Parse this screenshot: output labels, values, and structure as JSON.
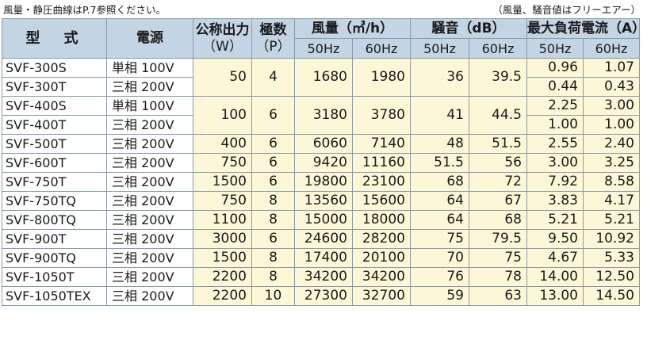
{
  "note_left": "風量・静圧曲線はP.7参照ください。",
  "note_right": "（風量、騒音値はフリーエアー）",
  "headers": {
    "model": "型　式",
    "power": "電源",
    "output": "公称出力",
    "output_unit": "（W）",
    "poles": "極数",
    "poles_unit": "（P）",
    "airflow": "風量（㎥/h）",
    "noise": "騒音（dB）",
    "current": "最大負荷電流（A）",
    "hz50": "50Hz",
    "hz60": "60Hz"
  },
  "rows": [
    {
      "model": "SVF-300S",
      "power": "単相 100V",
      "output": "50",
      "poles": "4",
      "af50": "1680",
      "af60": "1980",
      "n50": "36",
      "n60": "39.5",
      "c50": "0.96",
      "c60": "1.07"
    },
    {
      "model": "SVF-300T",
      "power": "三相 200V",
      "c50": "0.44",
      "c60": "0.43"
    },
    {
      "model": "SVF-400S",
      "power": "単相 100V",
      "output": "100",
      "poles": "6",
      "af50": "3180",
      "af60": "3780",
      "n50": "41",
      "n60": "44.5",
      "c50": "2.25",
      "c60": "3.00"
    },
    {
      "model": "SVF-400T",
      "power": "三相 200V",
      "c50": "1.00",
      "c60": "1.00"
    },
    {
      "model": "SVF-500T",
      "power": "三相 200V",
      "output": "400",
      "poles": "6",
      "af50": "6060",
      "af60": "7140",
      "n50": "48",
      "n60": "51.5",
      "c50": "2.55",
      "c60": "2.40"
    },
    {
      "model": "SVF-600T",
      "power": "三相 200V",
      "output": "750",
      "poles": "6",
      "af50": "9420",
      "af60": "11160",
      "n50": "51.5",
      "n60": "56",
      "c50": "3.00",
      "c60": "3.25"
    },
    {
      "model": "SVF-750T",
      "power": "三相 200V",
      "output": "1500",
      "poles": "6",
      "af50": "19800",
      "af60": "23100",
      "n50": "68",
      "n60": "72",
      "c50": "7.92",
      "c60": "8.58"
    },
    {
      "model": "SVF-750TQ",
      "power": "三相 200V",
      "output": "750",
      "poles": "8",
      "af50": "13560",
      "af60": "15600",
      "n50": "64",
      "n60": "67",
      "c50": "3.83",
      "c60": "4.17"
    },
    {
      "model": "SVF-800TQ",
      "power": "三相 200V",
      "output": "1100",
      "poles": "8",
      "af50": "15000",
      "af60": "18000",
      "n50": "64",
      "n60": "68",
      "c50": "5.21",
      "c60": "5.21"
    },
    {
      "model": "SVF-900T",
      "power": "三相 200V",
      "output": "3000",
      "poles": "6",
      "af50": "24600",
      "af60": "28200",
      "n50": "75",
      "n60": "79.5",
      "c50": "9.50",
      "c60": "10.92"
    },
    {
      "model": "SVF-900TQ",
      "power": "三相 200V",
      "output": "1500",
      "poles": "8",
      "af50": "17400",
      "af60": "20100",
      "n50": "70",
      "n60": "75",
      "c50": "4.67",
      "c60": "5.33"
    },
    {
      "model": "SVF-1050T",
      "power": "三相 200V",
      "output": "2200",
      "poles": "8",
      "af50": "34200",
      "af60": "34200",
      "n50": "76",
      "n60": "78",
      "c50": "14.00",
      "c60": "12.50"
    },
    {
      "model": "SVF-1050TEX",
      "power": "三相 200V",
      "output": "2200",
      "poles": "10",
      "af50": "27300",
      "af60": "32700",
      "n50": "59",
      "n60": "63",
      "c50": "13.00",
      "c60": "14.50"
    }
  ]
}
